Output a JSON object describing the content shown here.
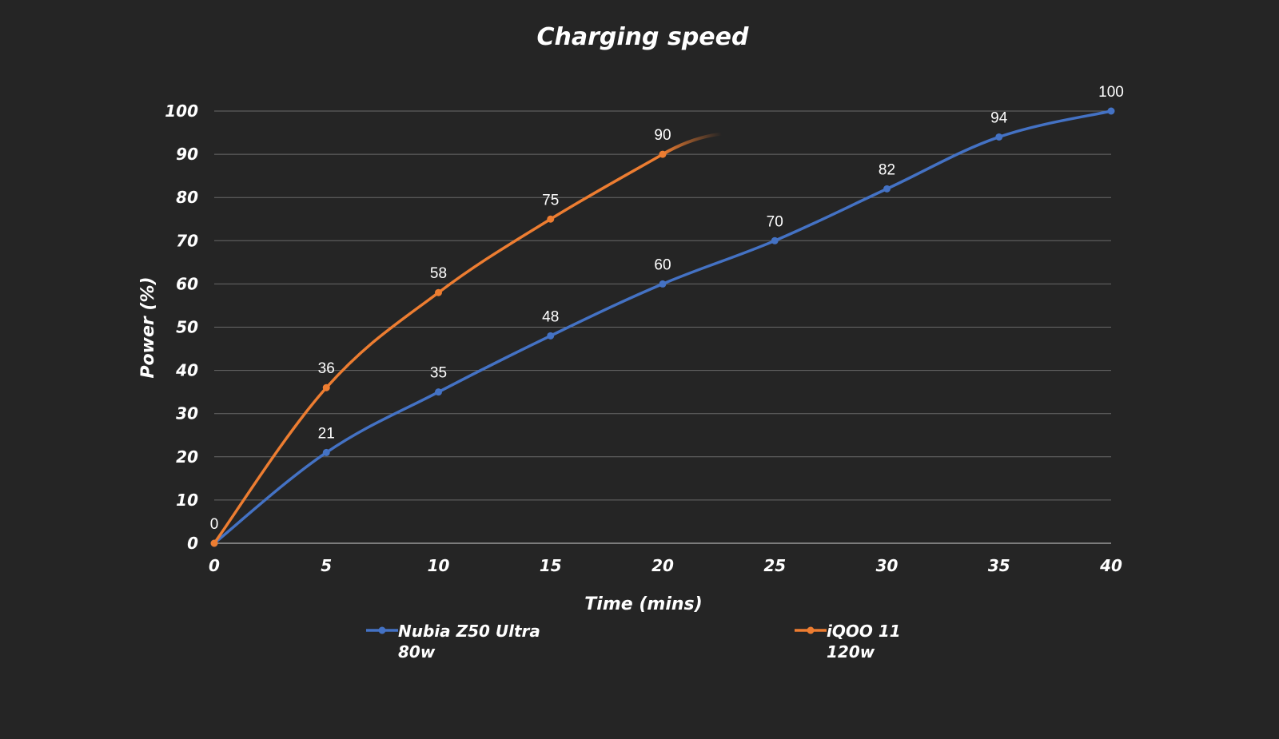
{
  "chart_data": {
    "type": "line",
    "title": "Charging speed",
    "xlabel": "Time (mins)",
    "ylabel": "Power (%)",
    "x": [
      0,
      5,
      10,
      15,
      20,
      25,
      30,
      35,
      40
    ],
    "xlim": [
      0,
      40
    ],
    "ylim": [
      0,
      100
    ],
    "xticks": [
      "0",
      "5",
      "10",
      "15",
      "20",
      "25",
      "30",
      "35",
      "40"
    ],
    "yticks": [
      "0",
      "10",
      "20",
      "30",
      "40",
      "50",
      "60",
      "70",
      "80",
      "90",
      "100"
    ],
    "grid": true,
    "legend_position": "bottom",
    "series": [
      {
        "name": "Nubia Z50 Ultra 80w",
        "legend_lines": [
          "Nubia Z50 Ultra",
          "80w"
        ],
        "color": "#4472c4",
        "x": [
          0,
          5,
          10,
          15,
          20,
          25,
          30,
          35,
          40
        ],
        "values": [
          0,
          21,
          35,
          48,
          60,
          70,
          82,
          94,
          100
        ],
        "labels": [
          "",
          "21",
          "35",
          "48",
          "60",
          "70",
          "82",
          "94",
          "100"
        ]
      },
      {
        "name": "iQOO 11 120w",
        "legend_lines": [
          "iQOO 11",
          "120w"
        ],
        "color": "#ed7d31",
        "x": [
          0,
          5,
          10,
          15,
          20
        ],
        "values": [
          0,
          36,
          58,
          75,
          90
        ],
        "labels": [
          "0",
          "36",
          "58",
          "75",
          "90"
        ]
      }
    ]
  }
}
